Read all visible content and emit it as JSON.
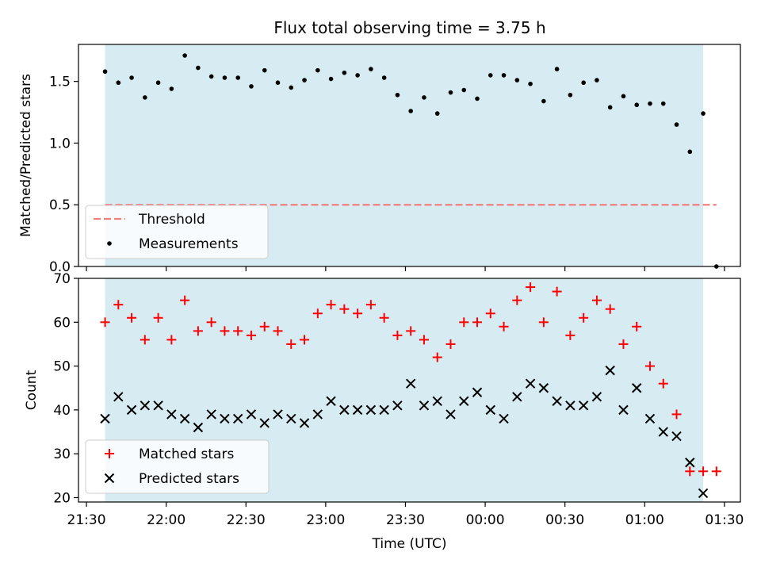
{
  "chart_data": [
    {
      "type": "scatter",
      "title": "Flux total observing time = 3.75 h",
      "xlabel": "",
      "ylabel": "Matched/Predicted stars",
      "xlim": [
        "21:27",
        "01:36"
      ],
      "ylim": [
        0,
        1.8
      ],
      "yticks": [
        "0.0",
        "0.5",
        "1.0",
        "1.5"
      ],
      "observing_window": [
        "21:37",
        "01:22"
      ],
      "legend": {
        "placement": "lower-left",
        "entries": [
          "Threshold",
          "Measurements"
        ]
      },
      "threshold": {
        "name": "Threshold",
        "y": 0.5,
        "x": [
          "21:37",
          "01:27"
        ],
        "color": "#f08080"
      },
      "series": [
        {
          "name": "Measurements",
          "color": "#000000",
          "x": [
            "21:37",
            "21:42",
            "21:47",
            "21:52",
            "21:57",
            "22:02",
            "22:07",
            "22:12",
            "22:17",
            "22:22",
            "22:27",
            "22:32",
            "22:37",
            "22:42",
            "22:47",
            "22:52",
            "22:57",
            "23:02",
            "23:07",
            "23:12",
            "23:17",
            "23:22",
            "23:27",
            "23:32",
            "23:37",
            "23:42",
            "23:47",
            "23:52",
            "23:57",
            "00:02",
            "00:07",
            "00:12",
            "00:17",
            "00:22",
            "00:27",
            "00:32",
            "00:37",
            "00:42",
            "00:47",
            "00:52",
            "00:57",
            "01:02",
            "01:07",
            "01:12",
            "01:17",
            "01:22",
            "01:27"
          ],
          "y": [
            1.58,
            1.49,
            1.53,
            1.37,
            1.49,
            1.44,
            1.71,
            1.61,
            1.54,
            1.53,
            1.53,
            1.46,
            1.59,
            1.49,
            1.45,
            1.51,
            1.59,
            1.52,
            1.57,
            1.55,
            1.6,
            1.53,
            1.39,
            1.26,
            1.37,
            1.24,
            1.41,
            1.43,
            1.36,
            1.55,
            1.55,
            1.51,
            1.48,
            1.34,
            1.6,
            1.39,
            1.49,
            1.51,
            1.29,
            1.38,
            1.31,
            1.32,
            1.32,
            1.15,
            0.93,
            1.24,
            0.0
          ]
        }
      ]
    },
    {
      "type": "scatter",
      "title": "",
      "xlabel": "Time (UTC)",
      "ylabel": "Count",
      "xlim": [
        "21:27",
        "01:36"
      ],
      "ylim": [
        19,
        70
      ],
      "yticks": [
        "20",
        "30",
        "40",
        "50",
        "60",
        "70"
      ],
      "xticks": [
        "21:30",
        "22:00",
        "22:30",
        "23:00",
        "23:30",
        "00:00",
        "00:30",
        "01:00",
        "01:30"
      ],
      "observing_window": [
        "21:37",
        "01:22"
      ],
      "legend": {
        "placement": "lower-left",
        "entries": [
          "Matched stars",
          "Predicted stars"
        ]
      },
      "series": [
        {
          "name": "Matched stars",
          "marker": "+",
          "color": "#ff0000",
          "x": [
            "21:37",
            "21:42",
            "21:47",
            "21:52",
            "21:57",
            "22:02",
            "22:07",
            "22:12",
            "22:17",
            "22:22",
            "22:27",
            "22:32",
            "22:37",
            "22:42",
            "22:47",
            "22:52",
            "22:57",
            "23:02",
            "23:07",
            "23:12",
            "23:17",
            "23:22",
            "23:27",
            "23:32",
            "23:37",
            "23:42",
            "23:47",
            "23:52",
            "23:57",
            "00:02",
            "00:07",
            "00:12",
            "00:17",
            "00:22",
            "00:27",
            "00:32",
            "00:37",
            "00:42",
            "00:47",
            "00:52",
            "00:57",
            "01:02",
            "01:07",
            "01:12",
            "01:17",
            "01:22",
            "01:27"
          ],
          "y": [
            60,
            64,
            61,
            56,
            61,
            56,
            65,
            58,
            60,
            58,
            58,
            57,
            59,
            58,
            55,
            56,
            62,
            64,
            63,
            62,
            64,
            61,
            57,
            58,
            56,
            52,
            55,
            60,
            60,
            62,
            59,
            65,
            68,
            60,
            67,
            57,
            61,
            65,
            63,
            55,
            59,
            50,
            46,
            39,
            26,
            26,
            26
          ]
        },
        {
          "name": "Predicted stars",
          "marker": "x",
          "color": "#000000",
          "x": [
            "21:37",
            "21:42",
            "21:47",
            "21:52",
            "21:57",
            "22:02",
            "22:07",
            "22:12",
            "22:17",
            "22:22",
            "22:27",
            "22:32",
            "22:37",
            "22:42",
            "22:47",
            "22:52",
            "22:57",
            "23:02",
            "23:07",
            "23:12",
            "23:17",
            "23:22",
            "23:27",
            "23:32",
            "23:37",
            "23:42",
            "23:47",
            "23:52",
            "23:57",
            "00:02",
            "00:07",
            "00:12",
            "00:17",
            "00:22",
            "00:27",
            "00:32",
            "00:37",
            "00:42",
            "00:47",
            "00:52",
            "00:57",
            "01:02",
            "01:07",
            "01:12",
            "01:17",
            "01:22"
          ],
          "y": [
            38,
            43,
            40,
            41,
            41,
            39,
            38,
            36,
            39,
            38,
            38,
            39,
            37,
            39,
            38,
            37,
            39,
            42,
            40,
            40,
            40,
            40,
            41,
            46,
            41,
            42,
            39,
            42,
            44,
            40,
            38,
            43,
            46,
            45,
            42,
            41,
            41,
            43,
            49,
            40,
            45,
            38,
            35,
            34,
            28,
            21
          ]
        }
      ]
    }
  ]
}
